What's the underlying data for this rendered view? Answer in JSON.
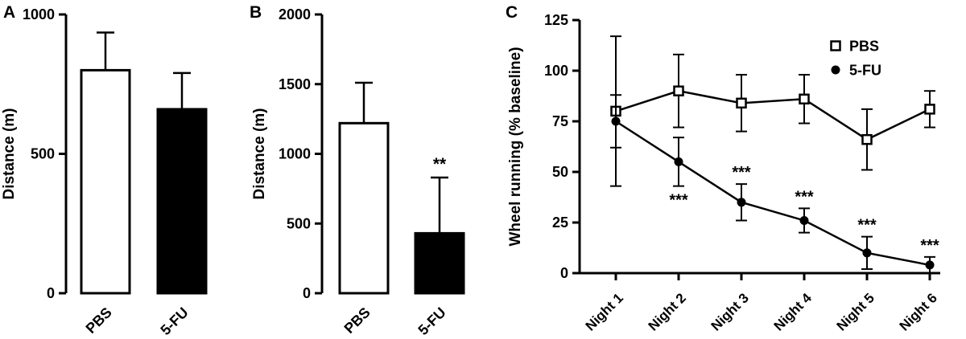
{
  "figure": {
    "background": "#ffffff",
    "ink": "#000000"
  },
  "chart_data": [
    {
      "panel": "A",
      "type": "bar",
      "title": "",
      "xlabel": "",
      "ylabel": "Distance (m)",
      "ylim": [
        0,
        1000
      ],
      "yticks": [
        0,
        500,
        1000
      ],
      "categories": [
        "PBS",
        "5-FU"
      ],
      "values": [
        800,
        660
      ],
      "errors_upper": [
        135,
        130
      ],
      "bar_fills": [
        "#ffffff",
        "#000000"
      ],
      "annotations": [
        "",
        ""
      ]
    },
    {
      "panel": "B",
      "type": "bar",
      "title": "",
      "xlabel": "",
      "ylabel": "Distance (m)",
      "ylim": [
        0,
        2000
      ],
      "yticks": [
        0,
        500,
        1000,
        1500,
        2000
      ],
      "categories": [
        "PBS",
        "5-FU"
      ],
      "values": [
        1220,
        430
      ],
      "errors_upper": [
        290,
        400
      ],
      "bar_fills": [
        "#ffffff",
        "#000000"
      ],
      "annotations": [
        "",
        "**"
      ]
    },
    {
      "panel": "C",
      "type": "line",
      "title": "",
      "xlabel": "",
      "ylabel": "Wheel running (% baseline)",
      "ylim": [
        0,
        125
      ],
      "yticks": [
        0,
        25,
        50,
        75,
        100,
        125
      ],
      "categories": [
        "Night 1",
        "Night 2",
        "Night 3",
        "Night 4",
        "Night 5",
        "Night 6"
      ],
      "grid": false,
      "series": [
        {
          "name": "PBS",
          "marker": "open-square",
          "color": "#000000",
          "values": [
            80,
            90,
            84,
            86,
            66,
            81
          ],
          "errors": [
            37,
            18,
            14,
            12,
            15,
            9
          ]
        },
        {
          "name": "5-FU",
          "marker": "filled-circle",
          "color": "#000000",
          "values": [
            75,
            55,
            35,
            26,
            10,
            4
          ],
          "errors": [
            13,
            12,
            9,
            6,
            8,
            4
          ]
        }
      ],
      "annotations": [
        {
          "series": "5-FU",
          "index": 1,
          "text": "***",
          "position": "below"
        },
        {
          "series": "5-FU",
          "index": 2,
          "text": "***",
          "position": "above"
        },
        {
          "series": "5-FU",
          "index": 3,
          "text": "***",
          "position": "above"
        },
        {
          "series": "5-FU",
          "index": 4,
          "text": "***",
          "position": "above"
        },
        {
          "series": "5-FU",
          "index": 5,
          "text": "***",
          "position": "above"
        }
      ],
      "legend": {
        "position": "top-right",
        "entries": [
          "PBS",
          "5-FU"
        ]
      }
    }
  ]
}
